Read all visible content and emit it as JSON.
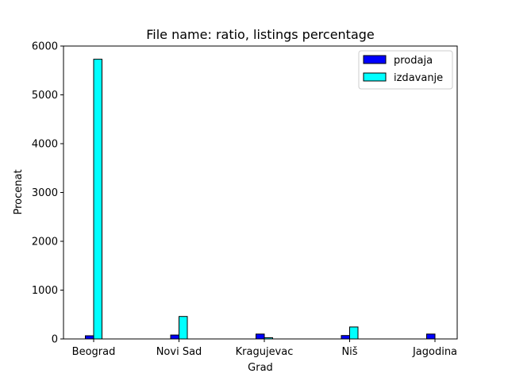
{
  "chart_data": {
    "type": "bar",
    "title": "File name: ratio, listings percentage",
    "xlabel": "Grad",
    "ylabel": "Procenat",
    "categories": [
      "Beograd",
      "Novi Sad",
      "Kragujevac",
      "Niš",
      "Jagodina"
    ],
    "series": [
      {
        "name": "prodaja",
        "color": "#0000ff",
        "values": [
          65,
          80,
          100,
          70,
          100
        ]
      },
      {
        "name": "izdavanje",
        "color": "#00ffff",
        "values": [
          5730,
          460,
          25,
          245,
          0
        ]
      }
    ],
    "ylim": [
      0,
      6000
    ],
    "yticks": [
      0,
      1000,
      2000,
      3000,
      4000,
      5000,
      6000
    ],
    "grid": false,
    "legend": "top-right"
  }
}
